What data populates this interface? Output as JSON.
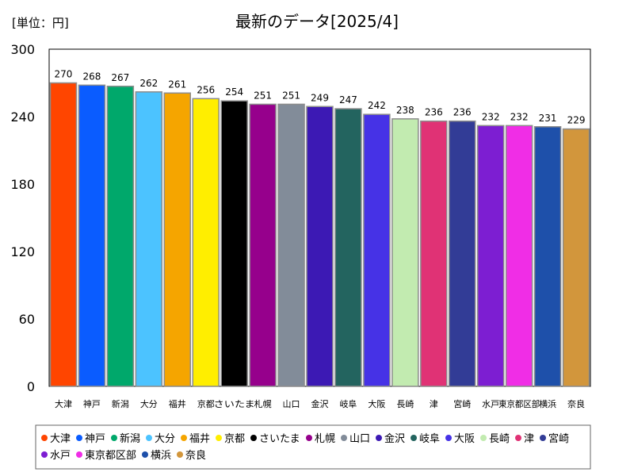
{
  "chart_data": {
    "type": "bar",
    "title": "最新のデータ[2025/4]",
    "unit_label": "[単位：円]",
    "ylim": [
      0,
      300
    ],
    "yticks": [
      0,
      60,
      120,
      180,
      240,
      300
    ],
    "grid": false,
    "legend_position": "bottom",
    "categories": [
      "大津",
      "神戸",
      "新潟",
      "大分",
      "福井",
      "京都",
      "さいたま",
      "札幌",
      "山口",
      "金沢",
      "岐阜",
      "大阪",
      "長崎",
      "津",
      "宮崎",
      "水戸",
      "東京都区部",
      "横浜",
      "奈良"
    ],
    "values": [
      270,
      268,
      267,
      262,
      261,
      256,
      254,
      251,
      251,
      249,
      247,
      242,
      238,
      236,
      236,
      232,
      232,
      231,
      229
    ],
    "colors": [
      "#ff4500",
      "#0a5cff",
      "#00a86b",
      "#4cc3ff",
      "#f5a500",
      "#ffee00",
      "#000000",
      "#96008c",
      "#828c99",
      "#3c19b4",
      "#23645f",
      "#4632e6",
      "#c2ebb0",
      "#e03275",
      "#323c96",
      "#7d1ed2",
      "#f02de6",
      "#1e50aa",
      "#d2963c"
    ]
  }
}
